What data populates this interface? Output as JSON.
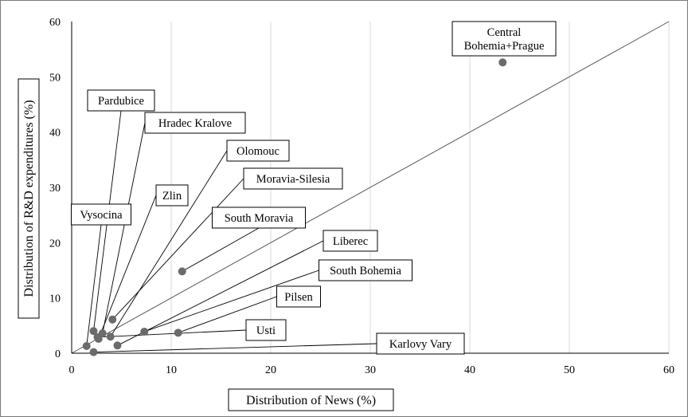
{
  "chart_data": {
    "type": "scatter",
    "xlabel": "Distribution of News (%)",
    "ylabel": "Distribution of R&D expenditures (%)",
    "xlim": [
      0,
      60
    ],
    "ylim": [
      0,
      60
    ],
    "x_ticks": [
      "0",
      "10",
      "20",
      "30",
      "40",
      "50",
      "60"
    ],
    "y_ticks": [
      "0",
      "10",
      "20",
      "30",
      "40",
      "50",
      "60"
    ],
    "grid": "vertical",
    "reference_line": {
      "from": [
        0,
        0
      ],
      "to": [
        60,
        60
      ]
    },
    "points": [
      {
        "label": "Central Bohemia+Prague",
        "lines": [
          "Central",
          "Bohemia+Prague"
        ],
        "x": 43.3,
        "y": 52.6
      },
      {
        "label": "Pardubice",
        "lines": [
          "Pardubice"
        ],
        "x": 2.2,
        "y": 4.0
      },
      {
        "label": "Hradec Kralove",
        "lines": [
          "Hradec Kralove"
        ],
        "x": 3.1,
        "y": 3.6
      },
      {
        "label": "Olomouc",
        "lines": [
          "Olomouc"
        ],
        "x": 3.9,
        "y": 3.0
      },
      {
        "label": "Moravia-Silesia",
        "lines": [
          "Moravia-Silesia"
        ],
        "x": 4.1,
        "y": 6.1
      },
      {
        "label": "Zlin",
        "lines": [
          "Zlin"
        ],
        "x": 2.7,
        "y": 2.6
      },
      {
        "label": "Vysocina",
        "lines": [
          "Vysocina"
        ],
        "x": 1.5,
        "y": 1.3
      },
      {
        "label": "South Moravia",
        "lines": [
          "South Moravia"
        ],
        "x": 11.1,
        "y": 14.8
      },
      {
        "label": "Liberec",
        "lines": [
          "Liberec"
        ],
        "x": 4.6,
        "y": 1.4
      },
      {
        "label": "South Bohemia",
        "lines": [
          "South Bohemia"
        ],
        "x": 7.3,
        "y": 3.9
      },
      {
        "label": "Pilsen",
        "lines": [
          "Pilsen"
        ],
        "x": 10.7,
        "y": 3.7
      },
      {
        "label": "Usti",
        "lines": [
          "Usti"
        ],
        "x": 2.6,
        "y": 2.9
      },
      {
        "label": "Karlovy Vary",
        "lines": [
          "Karlovy Vary"
        ],
        "x": 2.2,
        "y": 0.2
      }
    ]
  }
}
